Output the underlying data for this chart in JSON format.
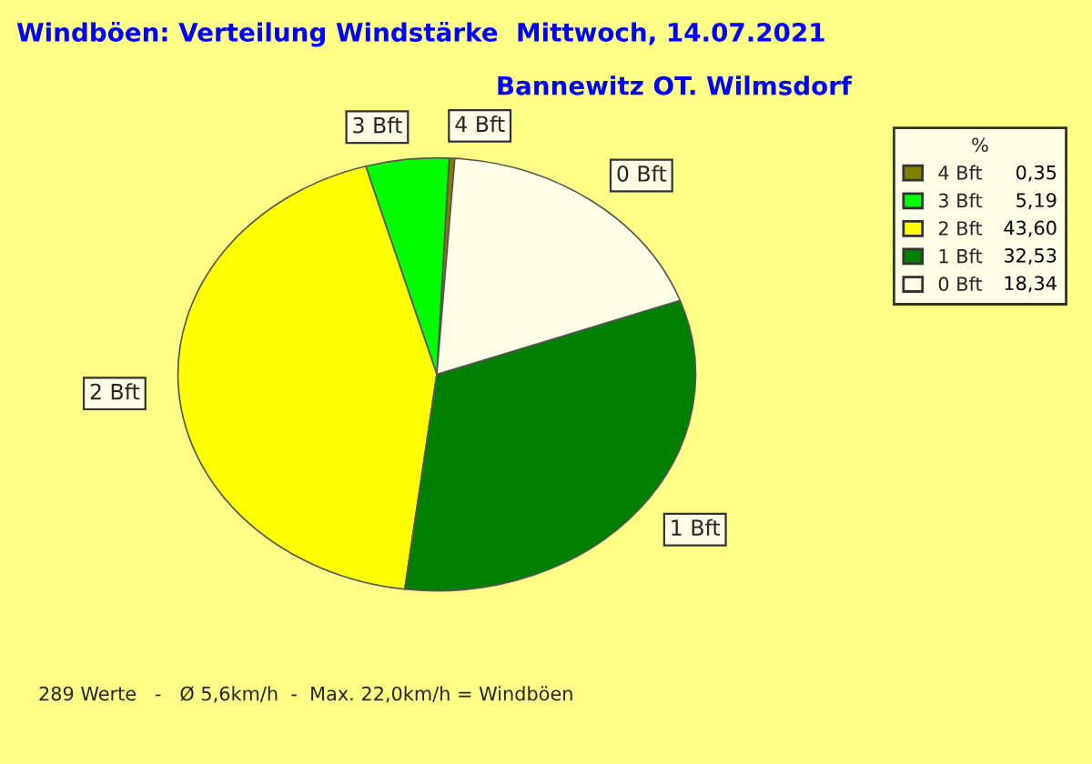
{
  "chart_data": {
    "type": "pie",
    "title": "Windböen: Verteilung Windstärke  Mittwoch, 14.07.2021",
    "subtitle": "Bannewitz OT. Wilmsdorf",
    "categories": [
      "4 Bft",
      "3 Bft",
      "2 Bft",
      "1 Bft",
      "0 Bft"
    ],
    "values": [
      0.35,
      5.19,
      43.6,
      32.53,
      18.34
    ],
    "value_labels": [
      "0,35",
      "5,19",
      "43,60",
      "32,53",
      "18,34"
    ],
    "colors": [
      "#808000",
      "#00ff00",
      "#ffff00",
      "#008000",
      "#ffffe8"
    ],
    "legend_title": "%",
    "legend": "top right",
    "annotations": [
      "289 Werte   -   Ø 5,6km/h  -  Max. 22,0km/h = Windböen"
    ]
  }
}
